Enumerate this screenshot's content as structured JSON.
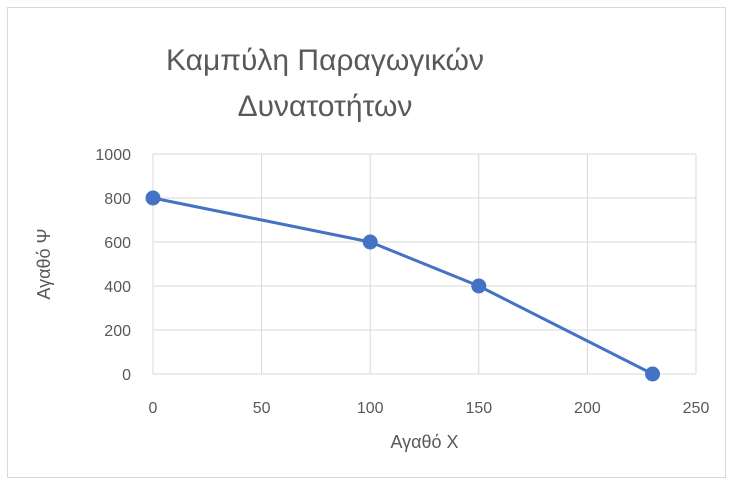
{
  "chart_data": {
    "type": "line",
    "title_lines": [
      "Καμπύλη Παραγωγικών",
      "Δυνατοτήτων"
    ],
    "xlabel": "Αγαθό Χ",
    "ylabel": "Αγαθό Ψ",
    "xlim": [
      0,
      250
    ],
    "ylim": [
      0,
      1000
    ],
    "x_ticks": [
      0,
      50,
      100,
      150,
      200,
      250
    ],
    "y_ticks": [
      0,
      200,
      400,
      600,
      800,
      1000
    ],
    "grid": true,
    "legend": "none",
    "series": [
      {
        "x": [
          0,
          100,
          150,
          230
        ],
        "y": [
          800,
          600,
          400,
          0
        ],
        "color": "#4472c4",
        "markers": true
      }
    ]
  }
}
